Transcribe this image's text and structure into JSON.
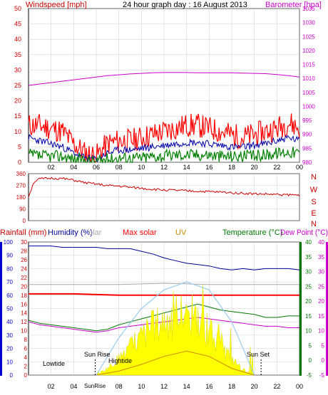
{
  "top_panel": {
    "title": "24 hour graph day : 16 August 2013",
    "left_label": "Windspeed [mph]",
    "right_label": "Barometer [hpa]"
  },
  "bottom_panel": {
    "legend": {
      "rainfall": "Rainfall (mm)",
      "humidity": "Humidity (%)",
      "solar": "olar",
      "max_solar": "Max solar",
      "uv": "UV",
      "temperature": "Temperature (°C)",
      "dew_point": "Dew Point (°C)"
    },
    "annotations": {
      "lowtide": "Lowtide",
      "sunrise": "Sun Rise",
      "sunrise_axis": "SunRise",
      "hightide": "Hightide",
      "sunset": "Sun Set"
    }
  },
  "colors": {
    "wind_gust": "#ff0000",
    "wind_avg": "#0000aa",
    "wind_low": "#008000",
    "barometer": "#cc00cc",
    "wind_dir": "#cc0000",
    "humidity": "#000099",
    "solar": "#aaaaaa",
    "max_solar": "#ff0000",
    "uv": "#cc8800",
    "temperature": "#007700",
    "dew_point": "#cc00cc",
    "solar_fill": "#ffff00",
    "max_solar_curve": "#99ccee",
    "left_axis": "#0000cc",
    "grid": "#cccccc",
    "frame": "#000000"
  },
  "chart_data": [
    {
      "type": "line",
      "title": "24 hour graph day : 16 August 2013",
      "x_ticks": [
        "02",
        "04",
        "06",
        "08",
        "10",
        "12",
        "14",
        "16",
        "18",
        "20",
        "22",
        "00"
      ],
      "xlim": [
        0,
        24
      ],
      "ylabel": "Windspeed [mph]",
      "y2label": "Barometer [hpa]",
      "ylim": [
        0,
        50
      ],
      "y_ticks": [
        0,
        5,
        10,
        15,
        20,
        25,
        30,
        35,
        40,
        45,
        50
      ],
      "y2lim": [
        980,
        1035
      ],
      "y2_ticks": [
        980,
        985,
        990,
        995,
        1000,
        1005,
        1010,
        1015,
        1020,
        1025,
        1030,
        1035
      ],
      "grid": true,
      "series": [
        {
          "key": "wind_gust",
          "axis": "y",
          "x": [
            0,
            1,
            2,
            3,
            4,
            5,
            6,
            7,
            8,
            9,
            10,
            11,
            12,
            13,
            14,
            15,
            16,
            17,
            18,
            19,
            20,
            21,
            22,
            23,
            24
          ],
          "values": [
            12,
            12,
            11,
            10,
            6,
            3,
            2,
            6,
            7,
            7,
            8,
            9,
            10,
            11,
            12,
            12,
            11,
            10,
            9,
            8,
            9,
            10,
            11,
            13,
            11
          ]
        },
        {
          "key": "wind_avg",
          "axis": "y",
          "x": [
            0,
            1,
            2,
            3,
            4,
            5,
            6,
            7,
            8,
            9,
            10,
            11,
            12,
            13,
            14,
            15,
            16,
            17,
            18,
            19,
            20,
            21,
            22,
            23,
            24
          ],
          "values": [
            8,
            7,
            6,
            5,
            3,
            1.5,
            1,
            3,
            4,
            4,
            4.5,
            5,
            5.5,
            6,
            6.5,
            6.5,
            6,
            5.5,
            5,
            5,
            5.5,
            6,
            7,
            8,
            7
          ]
        },
        {
          "key": "wind_low",
          "axis": "y",
          "x": [
            0,
            1,
            2,
            3,
            4,
            5,
            6,
            7,
            8,
            9,
            10,
            11,
            12,
            13,
            14,
            15,
            16,
            17,
            18,
            19,
            20,
            21,
            22,
            23,
            24
          ],
          "values": [
            2.5,
            2,
            2,
            2,
            1,
            0.5,
            0.3,
            1,
            1.5,
            1.5,
            1.5,
            2,
            2,
            2.5,
            2.5,
            2.5,
            2.5,
            2,
            2,
            2,
            2,
            2.5,
            3,
            3.5,
            3
          ]
        },
        {
          "key": "barometer",
          "axis": "y2",
          "x": [
            0,
            1,
            2,
            3,
            4,
            5,
            6,
            7,
            8,
            9,
            10,
            11,
            12,
            13,
            14,
            15,
            16,
            17,
            18,
            19,
            20,
            21,
            22,
            23,
            24
          ],
          "values": [
            1007.5,
            1008,
            1008.5,
            1009,
            1009.5,
            1010,
            1010.5,
            1011,
            1011.3,
            1011.6,
            1011.8,
            1012,
            1012.1,
            1012.1,
            1012.1,
            1012,
            1012,
            1012,
            1012,
            1011.9,
            1011.8,
            1011.7,
            1011.4,
            1011,
            1010.5
          ]
        }
      ]
    },
    {
      "type": "line",
      "ylabel": "Wind direction",
      "y_ticks": [
        0,
        90,
        180,
        270,
        360
      ],
      "ylim": [
        0,
        360
      ],
      "y2_ticks": [
        "N",
        "W",
        "S",
        "E",
        "N"
      ],
      "x_ticks": [
        "02",
        "04",
        "06",
        "08",
        "10",
        "12",
        "14",
        "16",
        "18",
        "20",
        "22",
        "00"
      ],
      "grid": true,
      "series": [
        {
          "key": "wind_dir",
          "x": [
            0,
            0.5,
            1,
            2,
            3,
            4,
            5,
            6,
            7,
            8,
            9,
            10,
            11,
            12,
            13,
            14,
            15,
            16,
            17,
            18,
            19,
            20,
            21,
            22,
            23,
            24
          ],
          "values": [
            185,
            300,
            320,
            325,
            322,
            310,
            290,
            280,
            268,
            265,
            255,
            248,
            240,
            235,
            232,
            228,
            225,
            222,
            218,
            215,
            210,
            205,
            203,
            200,
            198,
            195
          ]
        }
      ]
    },
    {
      "type": "line",
      "x_ticks": [
        "02",
        "04",
        "06",
        "08",
        "10",
        "12",
        "14",
        "16",
        "18",
        "20",
        "22",
        "00"
      ],
      "xlim": [
        0,
        24
      ],
      "axis_left_outer": {
        "label": "Rainfall / Humidity",
        "ticks": [
          0,
          10,
          20,
          30,
          40,
          50,
          60,
          70,
          80,
          90,
          100
        ],
        "range": [
          0,
          100
        ]
      },
      "axis_left_inner": {
        "ticks": [
          0,
          2,
          4,
          6,
          8,
          10,
          12,
          14,
          16,
          18,
          20,
          22,
          24,
          26,
          28,
          30
        ],
        "range": [
          0,
          30
        ]
      },
      "axis_right_inner": {
        "label": "Temperature (°C)",
        "ticks": [
          -5,
          0,
          5,
          10,
          15,
          20,
          25,
          30,
          35,
          40
        ],
        "range": [
          -5,
          40
        ]
      },
      "axis_right_outer": {
        "label": "Dew Point (°C)",
        "ticks": [
          -5,
          0,
          5,
          10,
          15,
          20,
          25,
          30,
          35,
          40
        ],
        "range": [
          -5,
          40
        ]
      },
      "grid": true,
      "series": [
        {
          "key": "humidity",
          "axis": "outer",
          "x": [
            0,
            1,
            2,
            3,
            4,
            5,
            6,
            7,
            8,
            9,
            10,
            11,
            12,
            13,
            14,
            15,
            16,
            17,
            18,
            19,
            20,
            21,
            22,
            23,
            24
          ],
          "values": [
            97,
            97,
            97,
            96,
            96,
            96,
            96,
            95,
            95,
            95,
            93,
            91,
            88,
            86,
            84,
            83,
            82,
            80,
            79,
            80,
            79,
            80,
            80,
            80,
            79
          ]
        },
        {
          "key": "solar",
          "axis": "outer",
          "x": [
            0,
            4,
            8,
            12,
            16,
            20,
            24
          ],
          "values": [
            68,
            68,
            68,
            69,
            68,
            68,
            68
          ]
        },
        {
          "key": "max_solar",
          "axis": "outer",
          "x": [
            0,
            4,
            8,
            12,
            16,
            20,
            24
          ],
          "values": [
            61,
            61,
            60,
            60,
            60,
            60,
            60
          ]
        },
        {
          "key": "temperature",
          "axis": "right",
          "x": [
            0,
            1,
            2,
            3,
            4,
            5,
            6,
            7,
            8,
            9,
            10,
            11,
            12,
            13,
            14,
            15,
            16,
            17,
            18,
            19,
            20,
            21,
            22,
            23,
            24
          ],
          "values": [
            13.5,
            12.5,
            12,
            11.5,
            11,
            10.5,
            10,
            10.5,
            12,
            13,
            14,
            15,
            16,
            17,
            18,
            19,
            18,
            17,
            16.5,
            16,
            15.5,
            14.5,
            14.5,
            15,
            15
          ]
        },
        {
          "key": "dew_point",
          "axis": "right",
          "x": [
            0,
            1,
            2,
            3,
            4,
            5,
            6,
            7,
            8,
            9,
            10,
            11,
            12,
            13,
            14,
            15,
            16,
            17,
            18,
            19,
            20,
            21,
            22,
            23,
            24
          ],
          "values": [
            13,
            12,
            11.5,
            11,
            10.5,
            10,
            9.5,
            10,
            11,
            11.5,
            12,
            12.5,
            13,
            13.5,
            14,
            14.5,
            14,
            13.5,
            13,
            12.5,
            12,
            11.5,
            11.5,
            11,
            11
          ]
        },
        {
          "key": "solar_fill",
          "axis": "outer",
          "x": [
            6,
            7,
            8,
            9,
            10,
            11,
            12,
            13,
            14,
            15,
            16,
            17,
            18,
            19,
            20
          ],
          "values": [
            0,
            5,
            12,
            20,
            28,
            35,
            40,
            44,
            45,
            40,
            32,
            22,
            12,
            4,
            0
          ]
        },
        {
          "key": "max_solar_curve",
          "axis": "outer",
          "x": [
            6,
            8,
            10,
            12,
            14,
            16,
            18,
            20
          ],
          "values": [
            0,
            28,
            50,
            64,
            70,
            64,
            40,
            0
          ]
        },
        {
          "key": "uv",
          "axis": "outer",
          "x": [
            6,
            8,
            10,
            12,
            14,
            16,
            18,
            20
          ],
          "values": [
            0,
            3,
            8,
            14,
            18,
            14,
            5,
            0
          ]
        }
      ]
    }
  ]
}
